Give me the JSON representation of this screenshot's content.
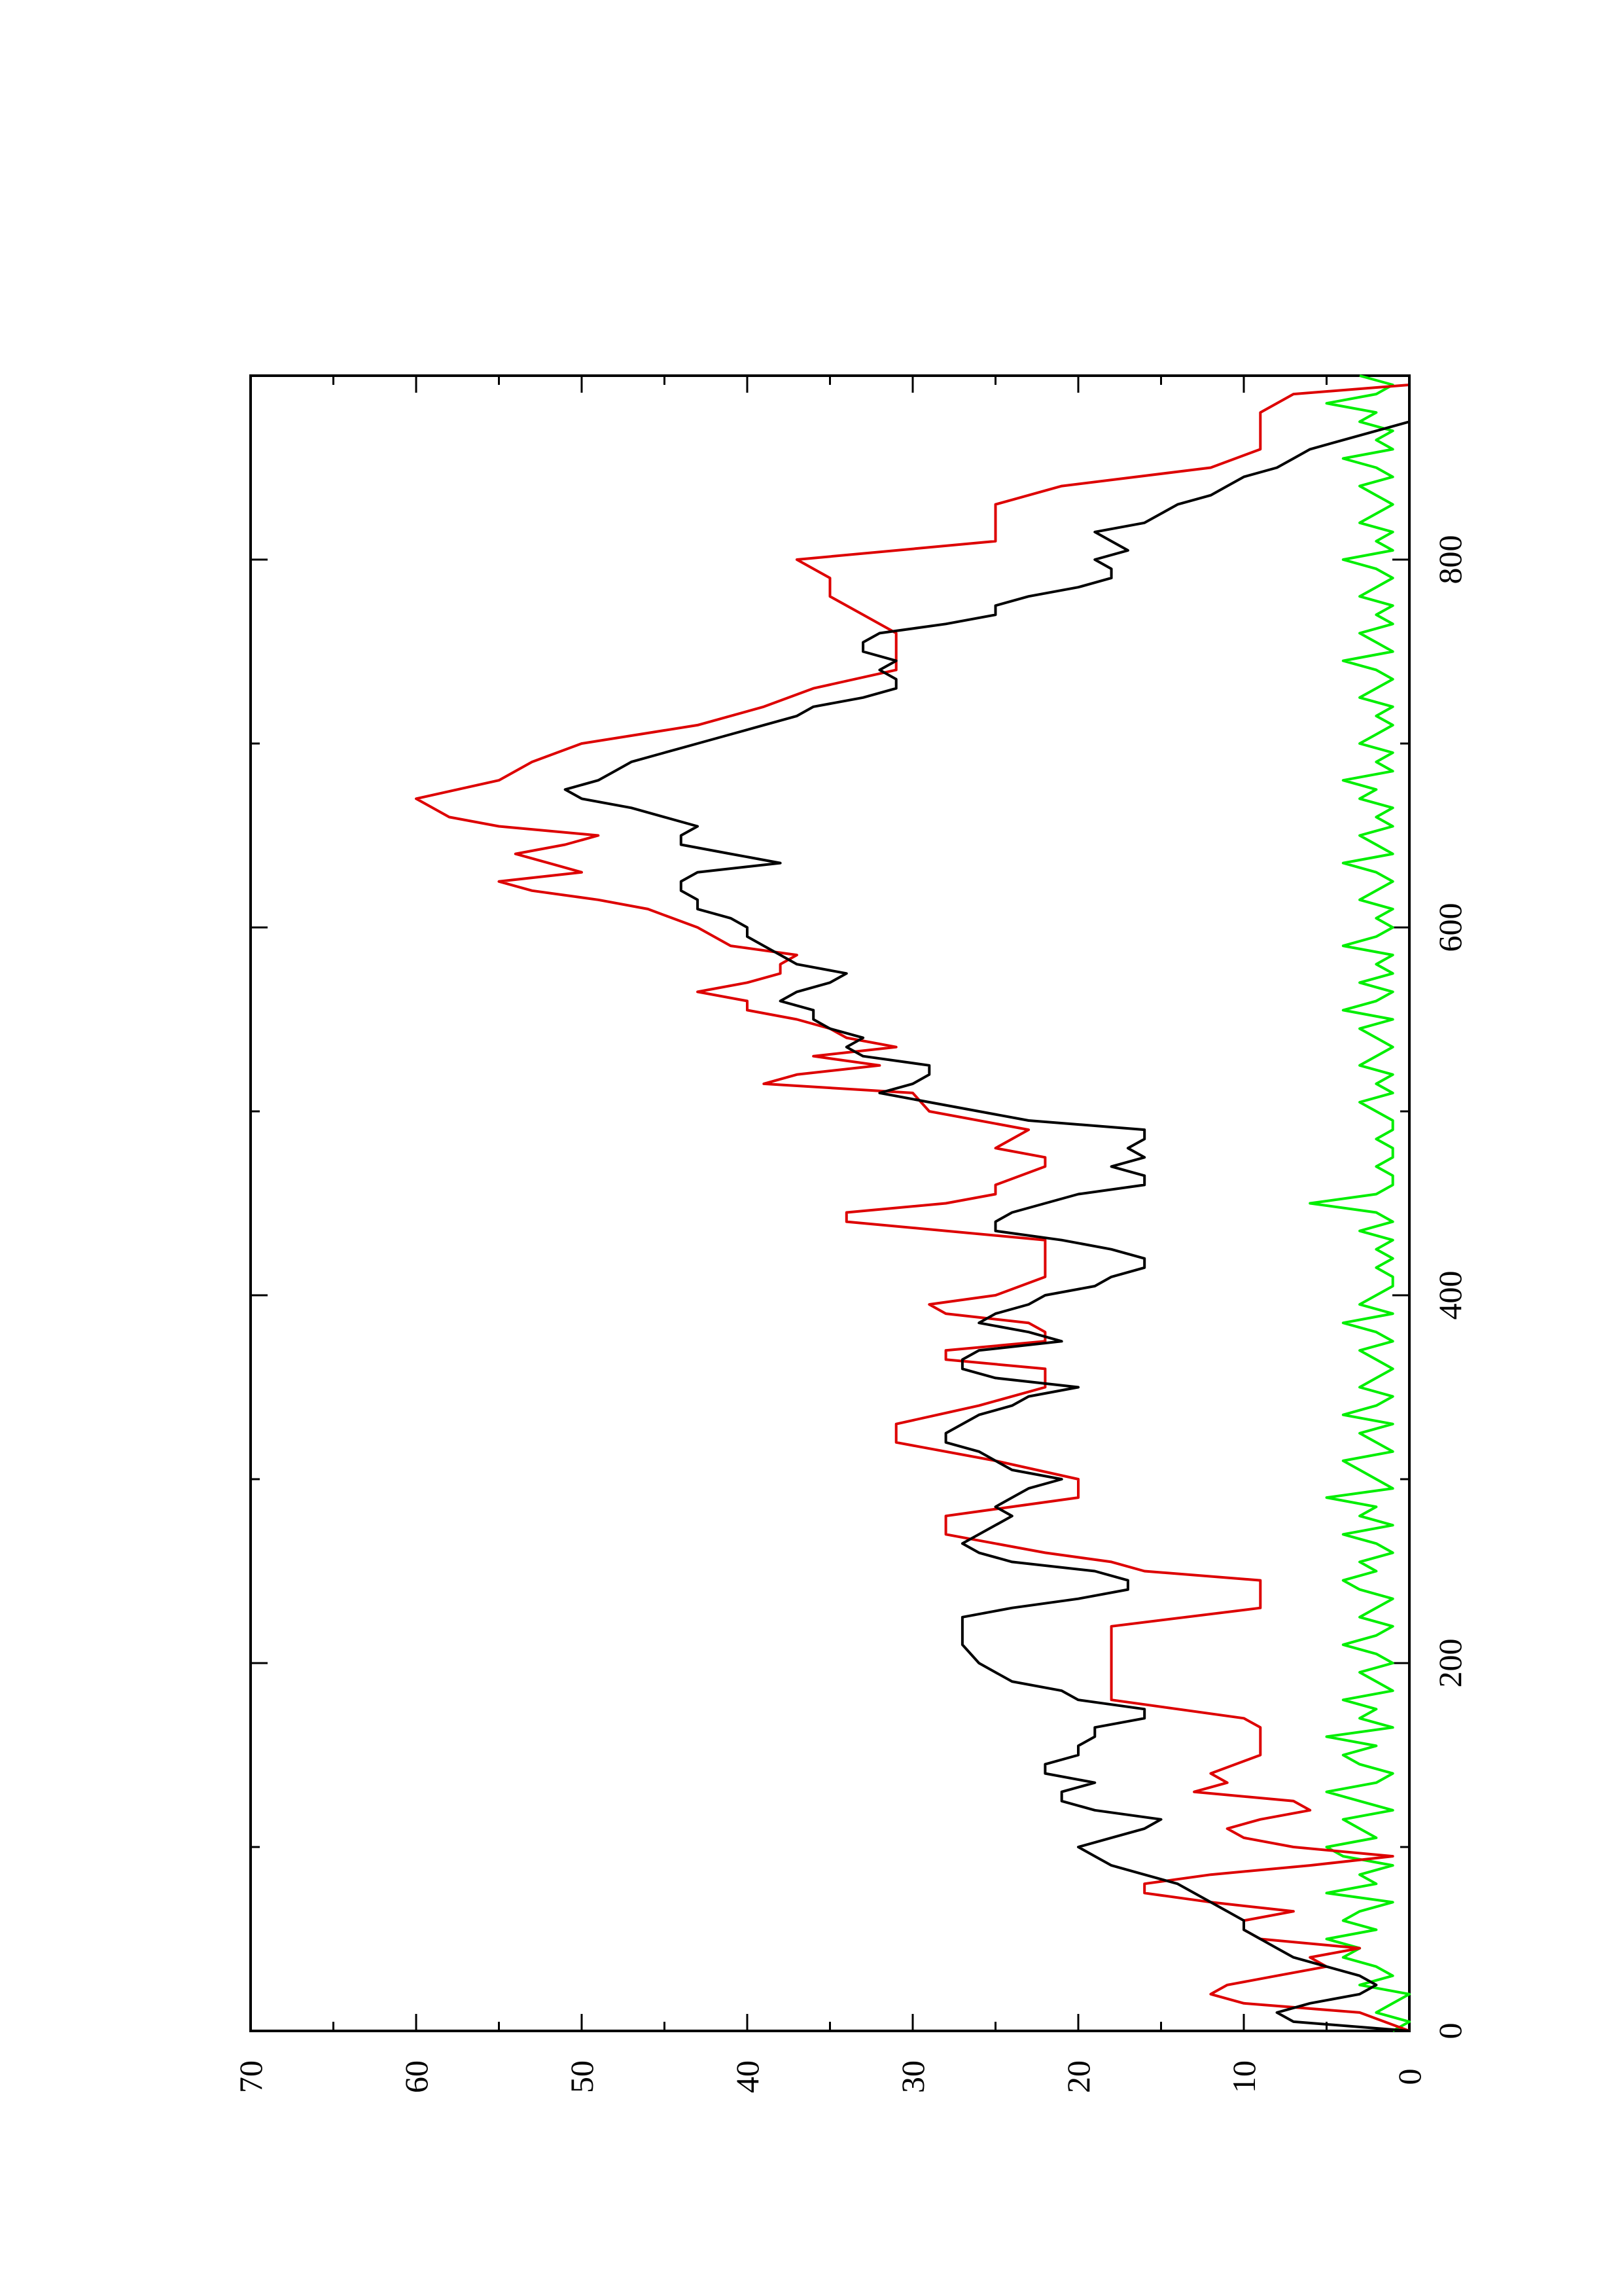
{
  "chart_data": {
    "type": "line",
    "orientation": "rotated-90-ccw",
    "title": "",
    "xlabel": "",
    "ylabel": "",
    "xlim": [
      0,
      900
    ],
    "ylim": [
      0,
      70
    ],
    "x_ticks": [
      {
        "value": 0,
        "label": "0"
      },
      {
        "value": 200,
        "label": "200"
      },
      {
        "value": 400,
        "label": "400"
      },
      {
        "value": 600,
        "label": "600"
      },
      {
        "value": 800,
        "label": "800"
      }
    ],
    "x_minor_ticks": [
      100,
      300,
      500,
      700
    ],
    "y_ticks": [
      {
        "value": 0,
        "label": "0"
      },
      {
        "value": 10,
        "label": "10"
      },
      {
        "value": 20,
        "label": "20"
      },
      {
        "value": 30,
        "label": "30"
      },
      {
        "value": 40,
        "label": "40"
      },
      {
        "value": 50,
        "label": "50"
      },
      {
        "value": 60,
        "label": "60"
      },
      {
        "value": 70,
        "label": "70"
      }
    ],
    "y_minor_ticks": [
      5,
      15,
      25,
      35,
      45,
      55,
      65
    ],
    "grid": false,
    "legend": "none",
    "series": [
      {
        "color": "#000000",
        "x": [
          0,
          5,
          10,
          15,
          20,
          25,
          30,
          35,
          40,
          45,
          50,
          55,
          60,
          65,
          70,
          75,
          80,
          85,
          90,
          95,
          100,
          105,
          110,
          115,
          120,
          125,
          130,
          135,
          140,
          145,
          150,
          155,
          160,
          165,
          170,
          175,
          180,
          185,
          190,
          195,
          200,
          210,
          220,
          225,
          230,
          235,
          240,
          245,
          250,
          255,
          260,
          265,
          270,
          275,
          280,
          285,
          290,
          295,
          300,
          305,
          310,
          315,
          320,
          325,
          330,
          335,
          340,
          345,
          350,
          355,
          360,
          365,
          370,
          375,
          380,
          385,
          390,
          395,
          400,
          405,
          410,
          415,
          420,
          425,
          430,
          435,
          440,
          445,
          450,
          455,
          460,
          465,
          470,
          475,
          480,
          485,
          490,
          495,
          500,
          505,
          510,
          515,
          520,
          525,
          530,
          535,
          540,
          545,
          550,
          555,
          560,
          565,
          570,
          575,
          580,
          585,
          590,
          595,
          600,
          605,
          610,
          615,
          620,
          625,
          630,
          635,
          640,
          645,
          650,
          655,
          660,
          665,
          670,
          675,
          680,
          685,
          690,
          695,
          700,
          705,
          710,
          715,
          720,
          725,
          730,
          735,
          740,
          745,
          750,
          755,
          760,
          765,
          770,
          775,
          780,
          785,
          790,
          795,
          800,
          805,
          810,
          815,
          820,
          825,
          830,
          835,
          840,
          845,
          850,
          855,
          860,
          865,
          870,
          875,
          880,
          885,
          890,
          895,
          900
        ],
        "values": [
          0,
          7,
          8,
          6,
          3,
          2,
          3,
          5,
          7,
          8,
          9,
          10,
          10,
          11,
          12,
          13,
          14,
          16,
          18,
          19,
          20,
          18,
          16,
          15,
          19,
          21,
          21,
          19,
          22,
          22,
          20,
          20,
          19,
          19,
          16,
          16,
          20,
          21,
          24,
          25,
          26,
          27,
          27,
          27,
          24,
          20,
          17,
          17,
          19,
          24,
          26,
          27,
          26,
          25,
          24,
          25,
          24,
          23,
          21,
          24,
          25,
          26,
          28,
          28,
          27,
          26,
          24,
          23,
          20,
          25,
          27,
          27,
          26,
          21,
          23,
          26,
          25,
          23,
          22,
          19,
          18,
          16,
          16,
          18,
          21,
          25,
          25,
          24,
          22,
          20,
          16,
          16,
          18,
          16,
          17,
          16,
          16,
          23,
          26,
          29,
          32,
          30,
          29,
          29,
          33,
          34,
          33,
          35,
          36,
          36,
          38,
          37,
          35,
          34,
          37,
          38,
          39,
          40,
          40,
          41,
          43,
          43,
          44,
          44,
          43,
          38,
          41,
          44,
          44,
          43,
          45,
          47,
          50,
          51,
          49,
          48,
          47,
          45,
          43,
          41,
          39,
          37,
          36,
          33,
          31,
          31,
          32,
          31,
          33,
          33,
          32,
          28,
          25,
          25,
          23,
          20,
          18,
          18,
          19,
          17,
          18,
          19,
          16,
          15,
          14,
          12,
          11,
          10,
          8,
          7,
          6,
          4,
          2,
          0,
          0,
          0,
          0,
          0,
          0
        ]
      },
      {
        "color": "#dd0000",
        "x": [
          0,
          10,
          15,
          20,
          25,
          30,
          35,
          40,
          45,
          50,
          55,
          60,
          65,
          70,
          75,
          80,
          85,
          90,
          95,
          100,
          105,
          110,
          115,
          120,
          125,
          130,
          135,
          140,
          150,
          155,
          160,
          165,
          170,
          180,
          200,
          220,
          230,
          240,
          245,
          250,
          255,
          260,
          270,
          280,
          290,
          300,
          310,
          320,
          330,
          340,
          350,
          355,
          360,
          365,
          370,
          375,
          380,
          385,
          390,
          395,
          400,
          410,
          420,
          430,
          440,
          445,
          450,
          455,
          460,
          470,
          475,
          480,
          490,
          500,
          510,
          515,
          520,
          525,
          530,
          535,
          540,
          545,
          550,
          555,
          560,
          565,
          570,
          575,
          580,
          585,
          590,
          600,
          610,
          615,
          620,
          625,
          630,
          635,
          640,
          645,
          650,
          655,
          660,
          670,
          680,
          690,
          700,
          710,
          720,
          730,
          740,
          745,
          750,
          760,
          770,
          780,
          790,
          800,
          810,
          820,
          830,
          840,
          850,
          860,
          870,
          880,
          890,
          895,
          900
        ],
        "values": [
          0,
          3,
          10,
          12,
          11,
          8,
          5,
          6,
          3,
          9,
          10,
          10,
          7,
          12,
          16,
          16,
          12,
          6,
          1,
          7,
          10,
          11,
          9,
          6,
          7,
          13,
          11,
          12,
          9,
          9,
          9,
          9,
          10,
          18,
          18,
          18,
          9,
          9,
          9,
          16,
          18,
          22,
          28,
          28,
          20,
          20,
          25,
          31,
          31,
          26,
          22,
          22,
          22,
          28,
          28,
          22,
          22,
          23,
          28,
          29,
          25,
          22,
          22,
          22,
          34,
          34,
          28,
          25,
          25,
          22,
          22,
          25,
          23,
          29,
          30,
          39,
          37,
          32,
          36,
          31,
          34,
          35,
          37,
          40,
          40,
          43,
          40,
          38,
          38,
          37,
          41,
          43,
          46,
          49,
          53,
          55,
          50,
          52,
          54,
          51,
          49,
          55,
          58,
          60,
          55,
          53,
          50,
          43,
          39,
          36,
          31,
          31,
          31,
          31,
          33,
          35,
          35,
          37,
          25,
          25,
          25,
          21,
          12,
          9,
          9,
          9,
          7,
          0,
          0
        ]
      },
      {
        "color": "#00ee00",
        "x": [
          0,
          5,
          10,
          15,
          20,
          25,
          30,
          35,
          40,
          45,
          50,
          55,
          60,
          65,
          70,
          75,
          80,
          85,
          90,
          95,
          100,
          105,
          110,
          115,
          120,
          125,
          130,
          135,
          140,
          145,
          150,
          155,
          160,
          165,
          170,
          175,
          180,
          185,
          190,
          195,
          200,
          205,
          210,
          215,
          220,
          225,
          230,
          235,
          240,
          245,
          250,
          255,
          260,
          265,
          270,
          275,
          280,
          285,
          290,
          295,
          300,
          305,
          310,
          315,
          320,
          325,
          330,
          335,
          340,
          345,
          350,
          355,
          360,
          365,
          370,
          375,
          380,
          385,
          390,
          395,
          400,
          405,
          410,
          415,
          420,
          425,
          430,
          435,
          440,
          445,
          450,
          455,
          460,
          465,
          470,
          475,
          480,
          485,
          490,
          495,
          500,
          505,
          510,
          515,
          520,
          525,
          530,
          535,
          540,
          545,
          550,
          555,
          560,
          565,
          570,
          575,
          580,
          585,
          590,
          595,
          600,
          605,
          610,
          615,
          620,
          625,
          630,
          635,
          640,
          645,
          650,
          655,
          660,
          665,
          670,
          675,
          680,
          685,
          690,
          695,
          700,
          705,
          710,
          715,
          720,
          725,
          730,
          735,
          740,
          745,
          750,
          755,
          760,
          765,
          770,
          775,
          780,
          785,
          790,
          795,
          800,
          805,
          810,
          815,
          820,
          825,
          830,
          835,
          840,
          845,
          850,
          855,
          860,
          865,
          870,
          875,
          880,
          885,
          890,
          895,
          900
        ],
        "values": [
          1,
          0,
          2,
          1,
          0,
          3,
          1,
          2,
          4,
          3,
          5,
          2,
          4,
          3,
          1,
          5,
          2,
          3,
          1,
          4,
          5,
          2,
          3,
          4,
          1,
          3,
          5,
          2,
          1,
          3,
          4,
          2,
          5,
          1,
          3,
          2,
          4,
          1,
          2,
          3,
          1,
          2,
          4,
          2,
          1,
          3,
          2,
          1,
          3,
          4,
          2,
          3,
          1,
          2,
          4,
          1,
          3,
          2,
          5,
          1,
          2,
          3,
          4,
          1,
          2,
          3,
          1,
          4,
          2,
          1,
          3,
          2,
          1,
          2,
          3,
          1,
          2,
          4,
          1,
          3,
          2,
          1,
          1,
          2,
          1,
          2,
          1,
          3,
          1,
          2,
          6,
          2,
          1,
          1,
          2,
          1,
          1,
          2,
          1,
          1,
          2,
          3,
          1,
          2,
          1,
          3,
          2,
          1,
          2,
          3,
          1,
          4,
          2,
          1,
          3,
          1,
          2,
          1,
          4,
          2,
          1,
          2,
          1,
          3,
          2,
          1,
          2,
          4,
          1,
          2,
          3,
          1,
          2,
          1,
          3,
          2,
          4,
          1,
          2,
          1,
          3,
          2,
          1,
          2,
          1,
          3,
          2,
          1,
          2,
          4,
          1,
          2,
          3,
          1,
          2,
          1,
          3,
          2,
          1,
          2,
          4,
          1,
          2,
          1,
          3,
          2,
          1,
          2,
          3,
          1,
          2,
          4,
          1,
          2,
          1,
          3,
          2,
          5,
          2,
          1,
          3
        ]
      }
    ]
  }
}
